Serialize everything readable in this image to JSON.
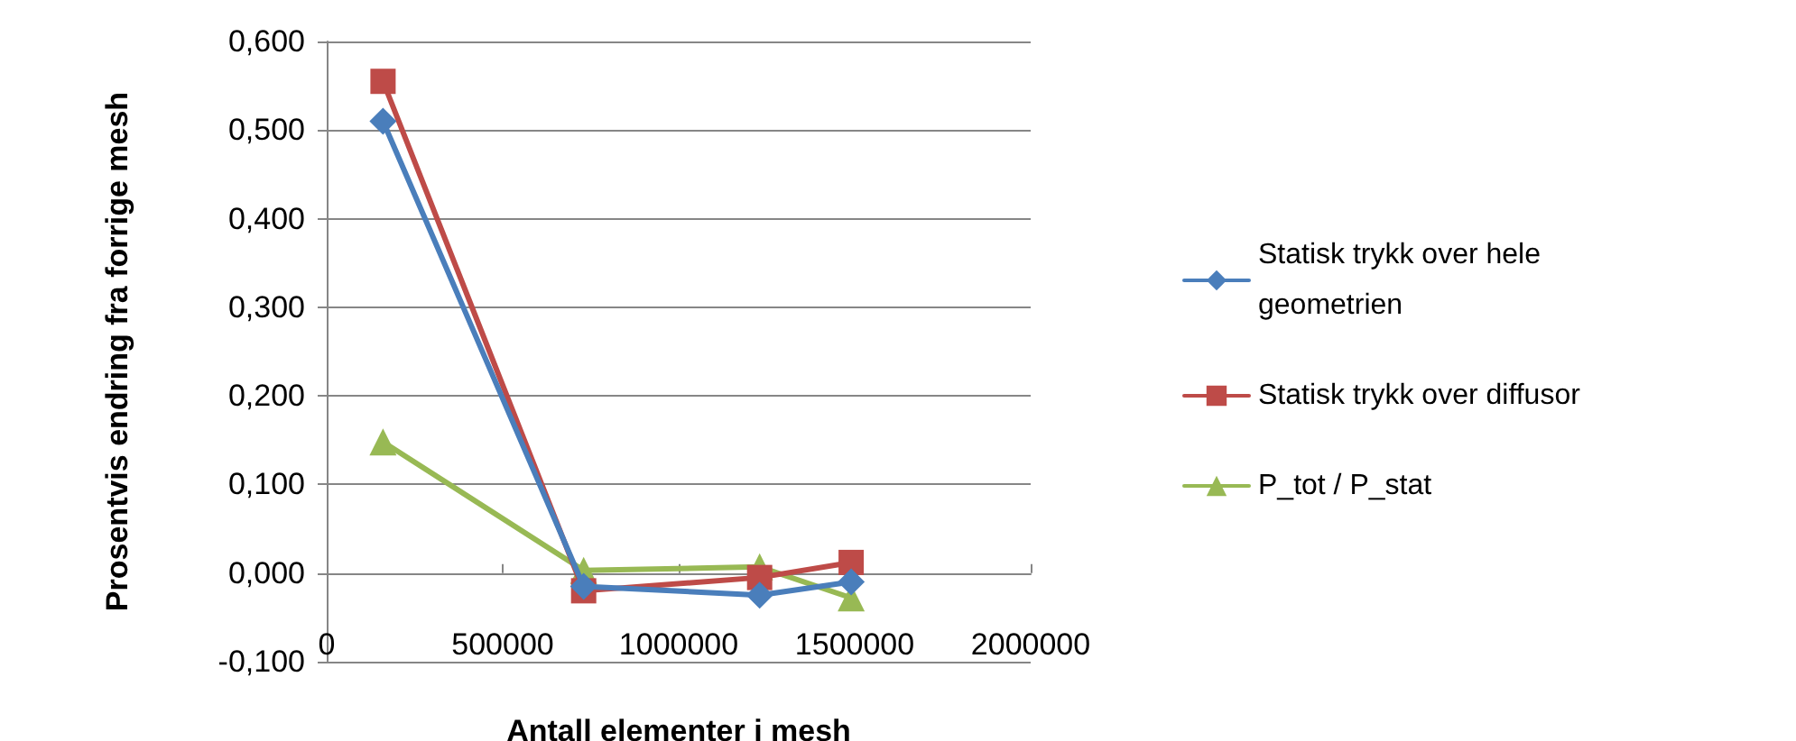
{
  "chart_data": {
    "type": "line",
    "xlabel": "Antall elementer i mesh",
    "ylabel": "Prosentvis endring fra forrige mesh",
    "x": [
      160000,
      730000,
      1230000,
      1490000
    ],
    "series": [
      {
        "name": "Statisk trykk over hele geometrien",
        "color": "#4a7ebb",
        "marker": "diamond",
        "values": [
          0.51,
          -0.015,
          -0.025,
          -0.01
        ]
      },
      {
        "name": "Statisk trykk over diffusor",
        "color": "#be4b48",
        "marker": "square",
        "values": [
          0.555,
          -0.02,
          -0.005,
          0.012
        ]
      },
      {
        "name": "P_tot / P_stat",
        "color": "#98b954",
        "marker": "triangle",
        "values": [
          0.148,
          0.003,
          0.007,
          -0.028
        ]
      }
    ],
    "xlim": [
      0,
      2000000
    ],
    "xticks": [
      0,
      500000,
      1000000,
      1500000,
      2000000
    ],
    "ylim": [
      -0.1,
      0.6
    ],
    "yticks": [
      {
        "value": -0.1,
        "label": "-0,100"
      },
      {
        "value": 0,
        "label": "0,000"
      },
      {
        "value": 0.1,
        "label": "0,100"
      },
      {
        "value": 0.2,
        "label": "0,200"
      },
      {
        "value": 0.3,
        "label": "0,300"
      },
      {
        "value": 0.4,
        "label": "0,400"
      },
      {
        "value": 0.5,
        "label": "0,500"
      },
      {
        "value": 0.6,
        "label": "0,600"
      }
    ],
    "grid": "y",
    "legend": "right",
    "line_style": "solid"
  }
}
